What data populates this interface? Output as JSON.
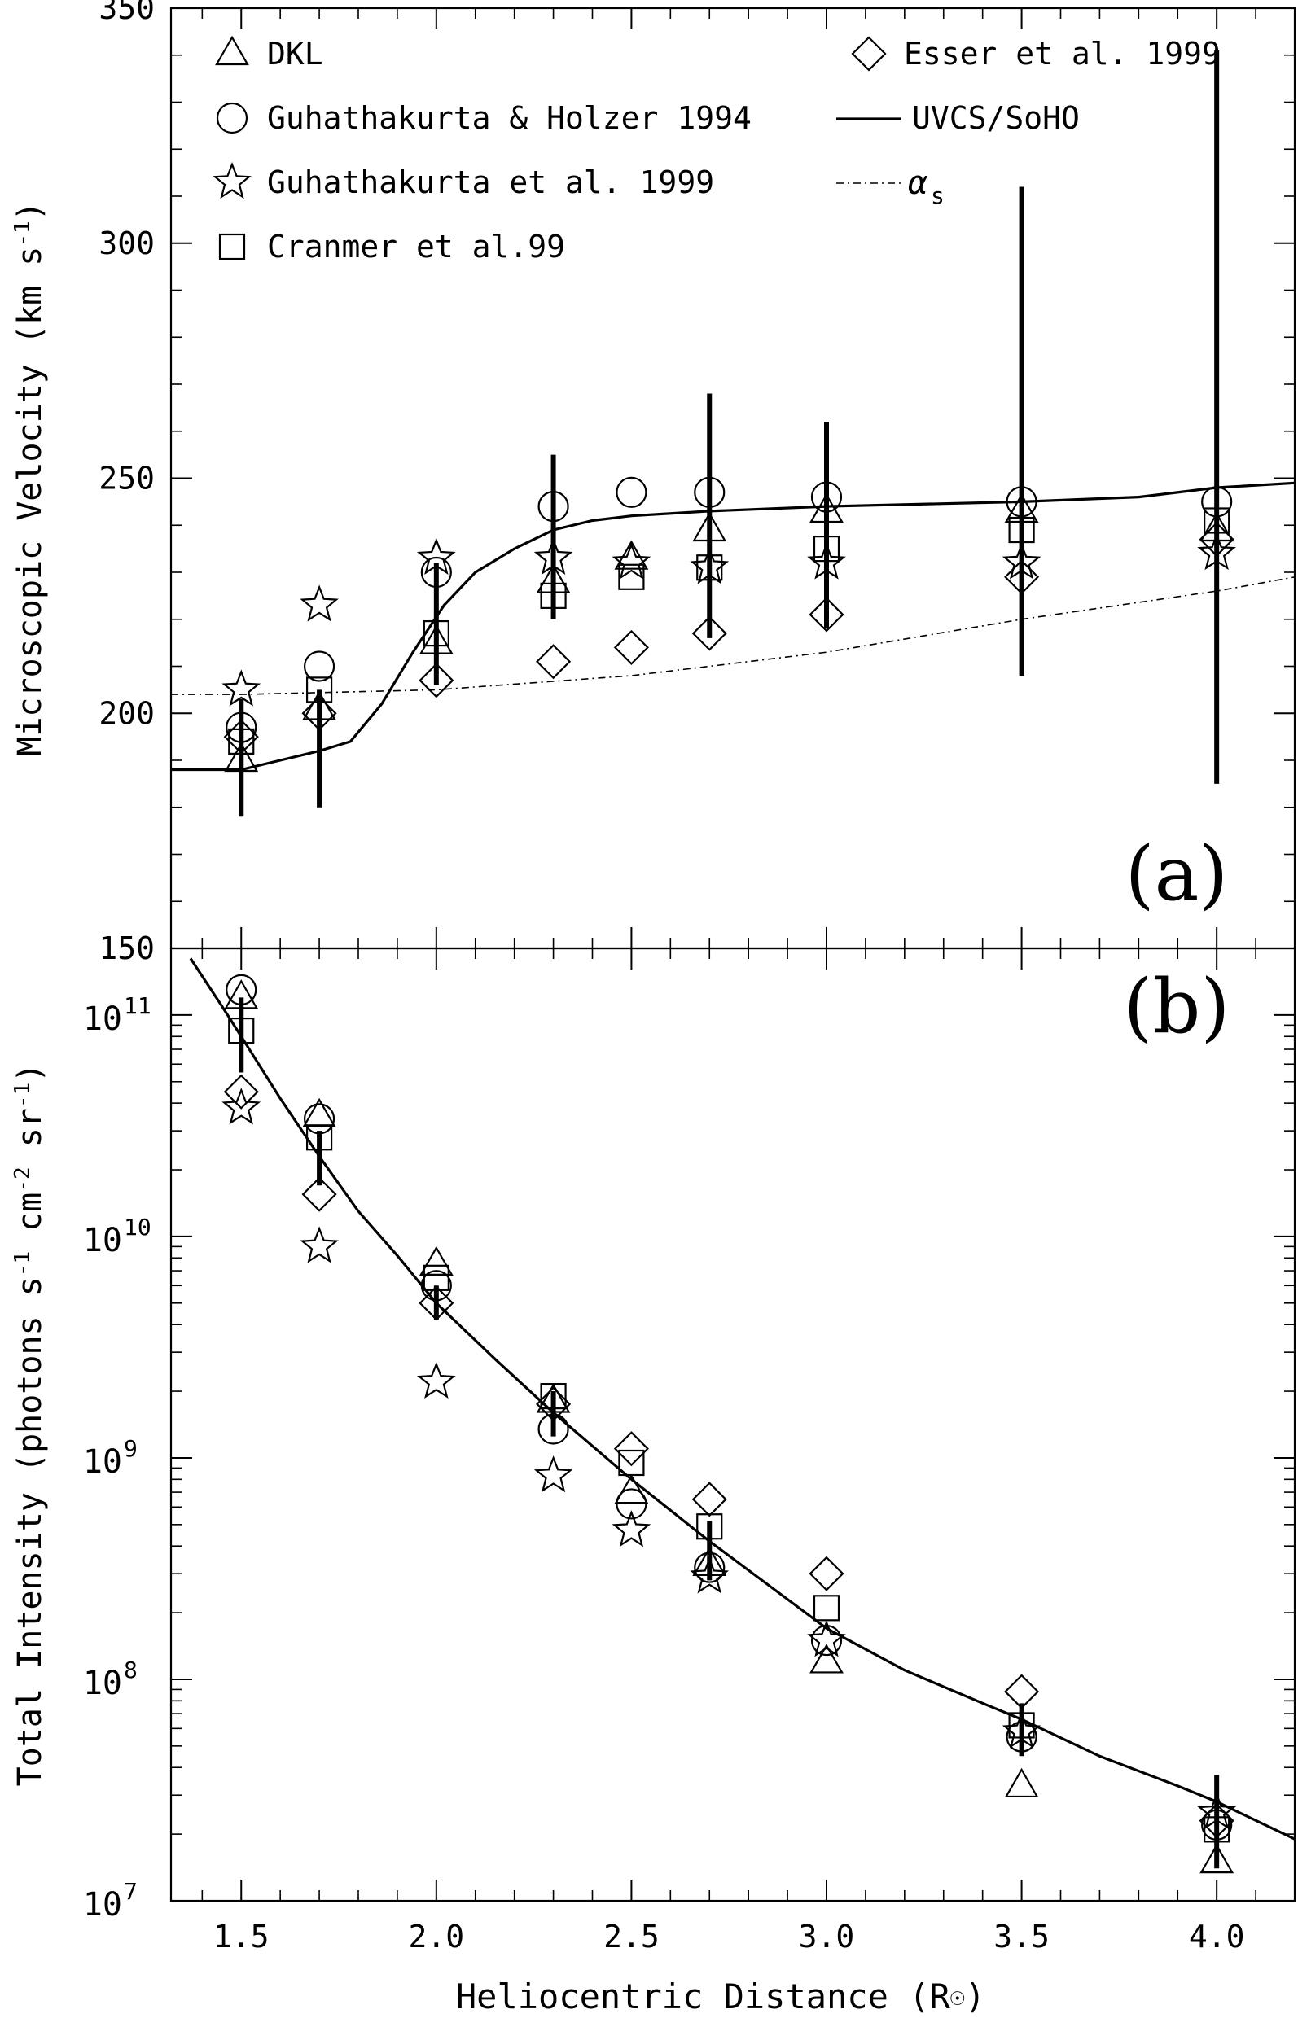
{
  "chart_data": [
    {
      "type": "scatter",
      "panel_label": "(a)",
      "xlabel": "",
      "ylabel": "Microscopic Velocity (km s",
      "ylabel_sup": "-1",
      "ylabel_end": ")",
      "xlim": [
        1.32,
        4.2
      ],
      "ylim": [
        150,
        350
      ],
      "y_scale": "linear",
      "y_ticks": [
        150,
        200,
        250,
        300,
        350
      ],
      "y_tick_labels": [
        "150",
        "200",
        "250",
        "300",
        "350"
      ],
      "y_minor_step": 10,
      "legend_position": "top",
      "legend": [
        {
          "marker": "triangle",
          "label": "DKL"
        },
        {
          "marker": "circle",
          "label": "Guhathakurta & Holzer 1994"
        },
        {
          "marker": "star",
          "label": "Guhathakurta et al. 1999"
        },
        {
          "marker": "square",
          "label": "Cranmer et al.99"
        },
        {
          "marker": "diamond",
          "label": "Esser et al. 1999"
        },
        {
          "marker": "solid-line",
          "label": "UVCS/SoHO"
        },
        {
          "marker": "dashdot-line",
          "label": "α",
          "label_sub": "s"
        }
      ],
      "series": [
        {
          "name": "DKL",
          "marker": "triangle",
          "x": [
            1.5,
            1.7,
            2.0,
            2.3,
            2.5,
            2.7,
            3.0,
            3.5,
            4.0
          ],
          "y": [
            190,
            201,
            215,
            228,
            233,
            239,
            243,
            243,
            239
          ]
        },
        {
          "name": "Guhathakurta & Holzer 1994",
          "marker": "circle",
          "x": [
            1.5,
            1.7,
            2.0,
            2.3,
            2.5,
            2.7,
            3.0,
            3.5,
            4.0
          ],
          "y": [
            197,
            210,
            230,
            244,
            247,
            247,
            246,
            245,
            245
          ]
        },
        {
          "name": "Guhathakurta et al. 1999",
          "marker": "star",
          "x": [
            1.5,
            1.7,
            2.0,
            2.3,
            2.5,
            2.7,
            3.0,
            3.5,
            4.0
          ],
          "y": [
            205,
            223,
            233,
            233,
            232,
            231,
            232,
            232,
            234
          ]
        },
        {
          "name": "Cranmer et al.99",
          "marker": "square",
          "x": [
            1.5,
            1.7,
            2.0,
            2.3,
            2.5,
            2.7,
            3.0,
            3.5,
            4.0
          ],
          "y": [
            194,
            205,
            217,
            225,
            229,
            231,
            235,
            239,
            241
          ]
        },
        {
          "name": "Esser et al. 1999",
          "marker": "diamond",
          "x": [
            1.5,
            1.7,
            2.0,
            2.3,
            2.5,
            2.7,
            3.0,
            3.5,
            4.0
          ],
          "y": [
            195,
            200,
            207,
            211,
            214,
            217,
            221,
            229,
            237
          ]
        },
        {
          "name": "UVCS/SoHO",
          "style": "solid-line",
          "x": [
            1.32,
            1.5,
            1.6,
            1.7,
            1.78,
            1.86,
            1.94,
            2.02,
            2.1,
            2.2,
            2.3,
            2.4,
            2.5,
            2.7,
            3.0,
            3.5,
            3.8,
            4.0,
            4.2
          ],
          "y": [
            188,
            188,
            190,
            192,
            194,
            202,
            213,
            223,
            230,
            235,
            239,
            241,
            242,
            243,
            244,
            245,
            246,
            248,
            249
          ]
        },
        {
          "name": "α",
          "style": "dashdot-line",
          "x": [
            1.32,
            1.5,
            2.0,
            2.5,
            3.0,
            3.5,
            4.0,
            4.2
          ],
          "y": [
            204,
            204,
            205,
            208,
            213,
            220,
            226,
            229
          ]
        }
      ],
      "error_bars": {
        "x": [
          1.5,
          1.7,
          2.0,
          2.3,
          2.7,
          3.0,
          3.5,
          4.0
        ],
        "low": [
          178,
          180,
          206,
          220,
          216,
          218,
          208,
          185
        ],
        "high": [
          203,
          205,
          232,
          255,
          268,
          262,
          312,
          341
        ]
      }
    },
    {
      "type": "scatter",
      "panel_label": "(b)",
      "xlabel": "Heliocentric Distance (R",
      "xlabel_end": ")",
      "ylabel": "Total Intensity (photons s",
      "ylabel_mid1": " cm",
      "ylabel_mid2": " sr",
      "ylabel_end": ")",
      "ylabel_sup1": "-1",
      "ylabel_sup2": "-2",
      "ylabel_sup3": "-1",
      "xlim": [
        1.32,
        4.2
      ],
      "ylim": [
        10000000,
        200000000000
      ],
      "y_scale": "log",
      "x_ticks": [
        1.5,
        2.0,
        2.5,
        3.0,
        3.5,
        4.0
      ],
      "x_tick_labels": [
        "1.5",
        "2.0",
        "2.5",
        "3.0",
        "3.5",
        "4.0"
      ],
      "y_tick_base": "10",
      "y_tick_exponents": [
        "7",
        "8",
        "9",
        "10",
        "11"
      ],
      "series": [
        {
          "name": "DKL",
          "marker": "triangle",
          "x": [
            1.5,
            1.7,
            2.0,
            2.3,
            2.5,
            2.7,
            3.0,
            3.5,
            4.0
          ],
          "y": [
            120000000000,
            35000000000,
            7500000000,
            1800000000,
            700000000,
            330000000,
            120000000,
            33000000,
            15000000
          ]
        },
        {
          "name": "Guhathakurta & Holzer 1994",
          "marker": "circle",
          "x": [
            1.5,
            1.7,
            2.0,
            2.3,
            2.5,
            2.7,
            3.0,
            3.5,
            4.0
          ],
          "y": [
            130000000000,
            34000000000,
            6000000000,
            1350000000,
            620000000,
            320000000,
            150000000,
            55000000,
            22000000
          ]
        },
        {
          "name": "Guhathakurta et al. 1999",
          "marker": "star",
          "x": [
            1.5,
            1.7,
            2.0,
            2.3,
            2.5,
            2.7,
            3.0,
            3.5,
            4.0
          ],
          "y": [
            38000000000,
            9000000000,
            2200000000,
            830000000,
            470000000,
            290000000,
            150000000,
            58000000,
            25000000
          ]
        },
        {
          "name": "Cranmer et al.99",
          "marker": "square",
          "x": [
            1.5,
            1.7,
            2.0,
            2.3,
            2.5,
            2.7,
            3.0,
            3.5,
            4.0
          ],
          "y": [
            85000000000,
            28000000000,
            6500000000,
            1900000000,
            950000000,
            490000000,
            210000000,
            62000000,
            21000000
          ]
        },
        {
          "name": "Esser et al. 1999",
          "marker": "diamond",
          "x": [
            1.5,
            1.7,
            2.0,
            2.3,
            2.5,
            2.7,
            3.0,
            3.5,
            4.0
          ],
          "y": [
            45000000000,
            15500000000,
            5000000000,
            1750000000,
            1100000000,
            650000000,
            300000000,
            88000000,
            23000000
          ]
        },
        {
          "name": "UVCS/SoHO",
          "style": "solid-line",
          "x": [
            1.37,
            1.45,
            1.5,
            1.6,
            1.7,
            1.8,
            1.9,
            2.0,
            2.15,
            2.3,
            2.5,
            2.7,
            2.9,
            3.0,
            3.2,
            3.4,
            3.5,
            3.7,
            3.9,
            4.0,
            4.2
          ],
          "y": [
            180000000000,
            110000000000,
            80000000000,
            42000000000,
            23000000000,
            13000000000,
            8200000000,
            5000000000,
            2800000000,
            1600000000,
            800000000,
            420000000,
            230000000,
            170000000,
            110000000,
            78000000,
            66000000,
            45000000,
            33000000,
            28000000,
            19000000
          ]
        }
      ],
      "error_bars": {
        "x": [
          1.5,
          1.7,
          2.0,
          2.3,
          2.7,
          3.5,
          4.0
        ],
        "low": [
          55000000000,
          17000000000,
          4200000000,
          1250000000,
          280000000,
          45000000,
          14000000
        ],
        "high": [
          120000000000,
          30000000000,
          6000000000,
          2000000000,
          520000000,
          78000000,
          37000000
        ]
      }
    }
  ]
}
